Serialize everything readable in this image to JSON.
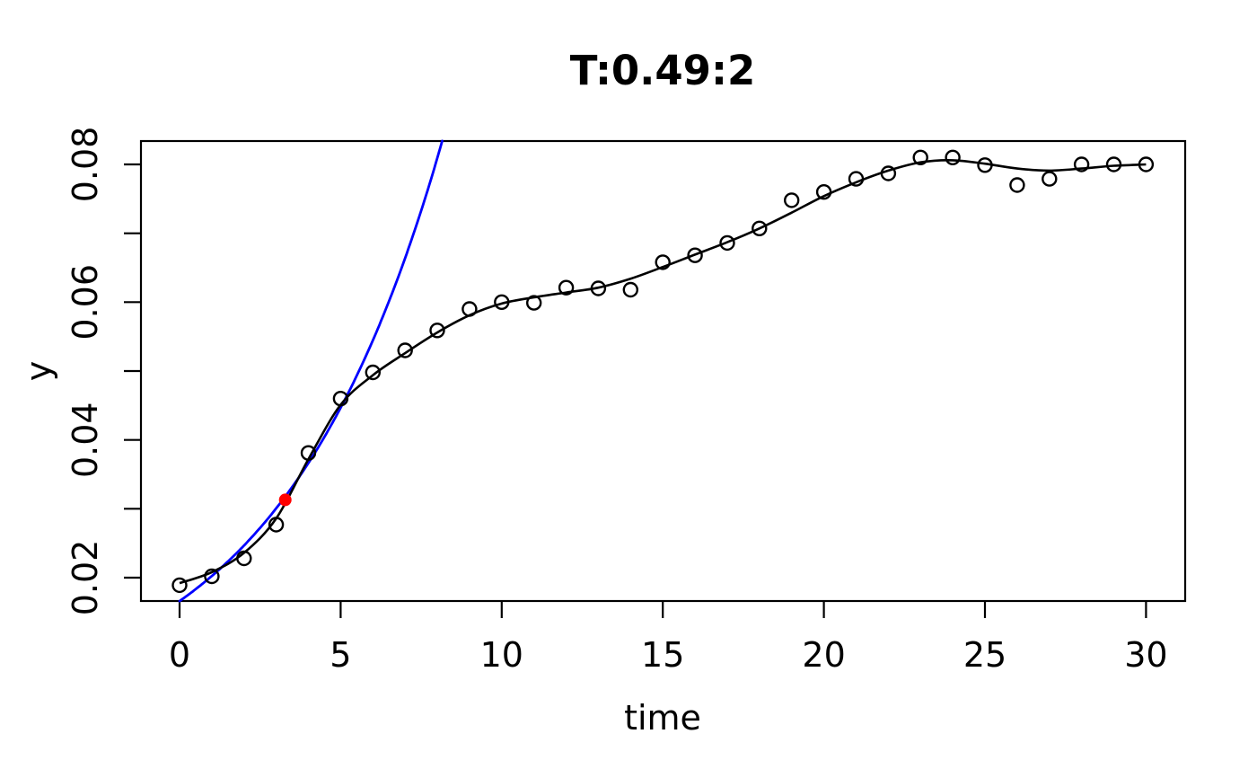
{
  "chart_data": {
    "type": "scatter",
    "title": "T:0.49:2",
    "xlabel": "time",
    "ylabel": "y",
    "grid": false,
    "legend": "none",
    "x_axis": {
      "ticks": [
        0,
        5,
        10,
        15,
        20,
        25,
        30
      ],
      "tick_labels": [
        "0",
        "5",
        "10",
        "15",
        "20",
        "25",
        "30"
      ],
      "range": [
        -1.2,
        31.2
      ]
    },
    "y_axis": {
      "ticks": [
        0.02,
        0.04,
        0.06,
        0.08
      ],
      "tick_labels": [
        "0.02",
        "0.04",
        "0.06",
        "0.08"
      ],
      "minor_ticks": [
        0.03,
        0.05,
        0.07
      ],
      "range": [
        0.0166,
        0.0834
      ]
    },
    "series": [
      {
        "name": "observed-points",
        "type": "scatter",
        "marker": "open-circle",
        "color": "#000000",
        "x": [
          0,
          1,
          2,
          3,
          4,
          5,
          6,
          7,
          8,
          9,
          10,
          11,
          12,
          13,
          14,
          15,
          16,
          17,
          18,
          19,
          20,
          21,
          22,
          23,
          24,
          25,
          26,
          27,
          28,
          29,
          30
        ],
        "y": [
          0.0189,
          0.0202,
          0.0228,
          0.0277,
          0.0381,
          0.046,
          0.0498,
          0.053,
          0.0559,
          0.059,
          0.06,
          0.0599,
          0.0621,
          0.062,
          0.0618,
          0.0658,
          0.0668,
          0.0686,
          0.0707,
          0.0748,
          0.076,
          0.0779,
          0.0787,
          0.081,
          0.081,
          0.0799,
          0.077,
          0.0779,
          0.08,
          0.08,
          0.08
        ]
      },
      {
        "name": "smooth-fit-curve",
        "type": "line",
        "color": "#000000",
        "x": [
          0,
          1,
          2,
          3,
          4,
          5,
          6,
          7,
          8,
          9,
          10,
          11,
          12,
          13,
          14,
          15,
          16,
          17,
          18,
          19,
          20,
          21,
          22,
          23,
          24,
          25,
          26,
          27,
          28,
          29,
          30
        ],
        "y": [
          0.0192,
          0.0208,
          0.0236,
          0.0286,
          0.0372,
          0.0451,
          0.0494,
          0.0526,
          0.0556,
          0.0581,
          0.0598,
          0.0607,
          0.0614,
          0.0621,
          0.0634,
          0.0651,
          0.0669,
          0.0687,
          0.0707,
          0.073,
          0.0754,
          0.0774,
          0.0791,
          0.0803,
          0.0806,
          0.0801,
          0.0794,
          0.0791,
          0.0794,
          0.0798,
          0.08
        ]
      },
      {
        "name": "exponential-curve",
        "type": "line",
        "color": "#0000ff",
        "model": "y = y0 * exp(k * t)",
        "y0": 0.0166,
        "k": 0.198,
        "t_start": 0,
        "t_end": 8.2
      },
      {
        "name": "highlight-point",
        "type": "scatter",
        "marker": "filled-circle",
        "color": "#ff0000",
        "x": [
          3.28
        ],
        "y": [
          0.0313
        ]
      }
    ],
    "colors": {
      "background": "#ffffff",
      "axis": "#000000",
      "points": "#000000",
      "fit": "#000000",
      "exponential": "#0000ff",
      "highlight": "#ff0000"
    }
  }
}
